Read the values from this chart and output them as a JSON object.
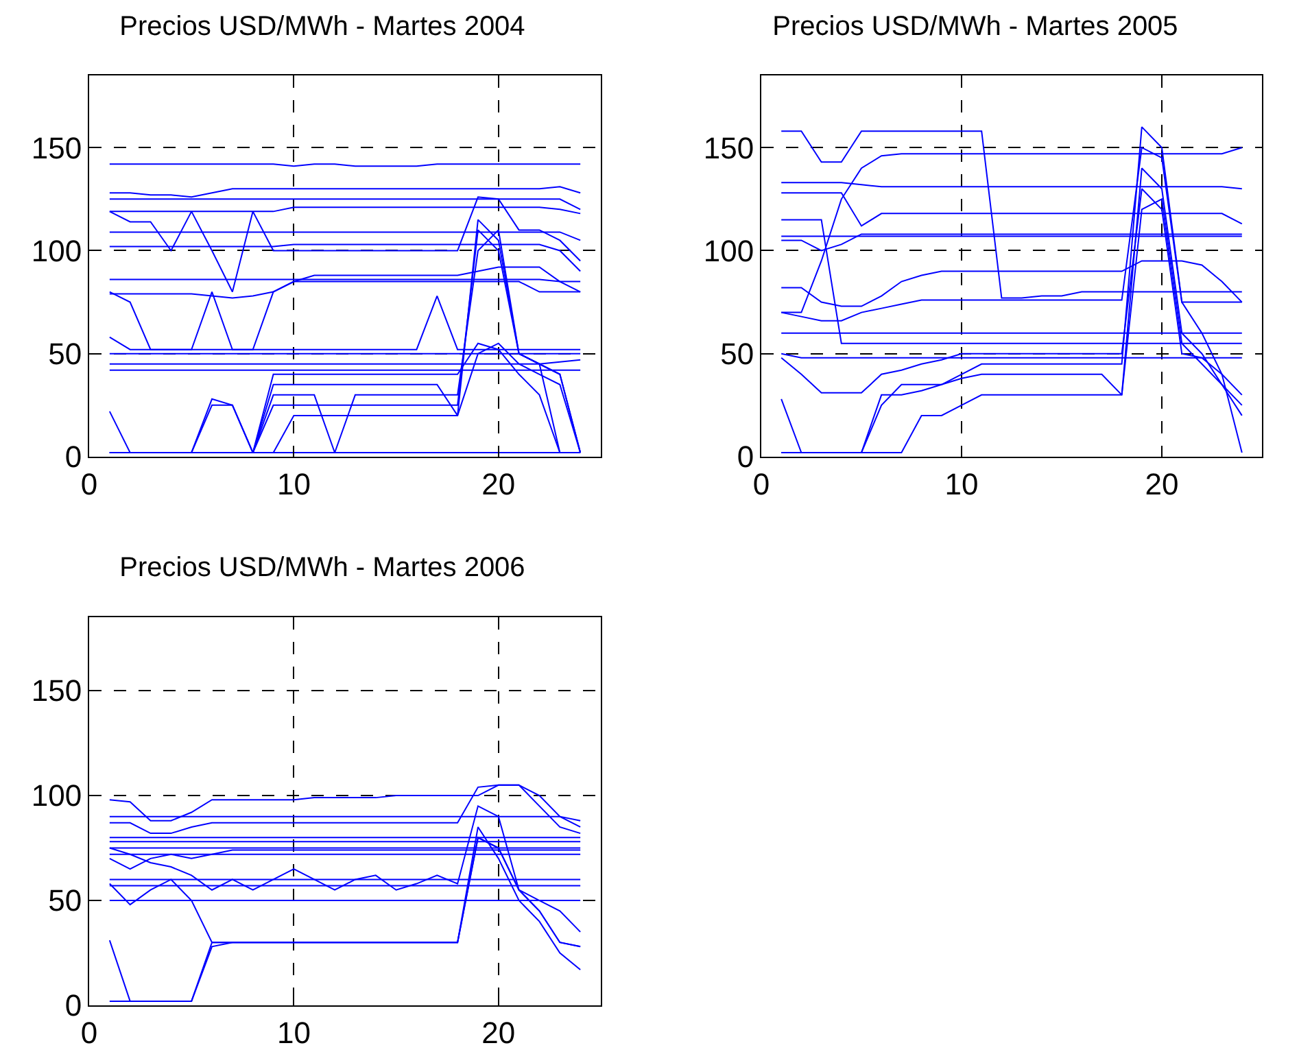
{
  "chart_data": [
    {
      "type": "line",
      "title": "Precios USD/MWh - Martes 2004",
      "x": [
        1,
        2,
        3,
        4,
        5,
        6,
        7,
        8,
        9,
        10,
        11,
        12,
        13,
        14,
        15,
        16,
        17,
        18,
        19,
        20,
        21,
        22,
        23,
        24
      ],
      "xlim": [
        0,
        25
      ],
      "ylim": [
        0,
        185
      ],
      "xticks": [
        0,
        10,
        20
      ],
      "yticks": [
        0,
        50,
        100,
        150
      ],
      "grid": true,
      "series": [
        {
          "color": "#0000ff",
          "values": [
            142,
            142,
            142,
            142,
            142,
            142,
            142,
            142,
            142,
            141,
            142,
            142,
            141,
            141,
            141,
            141,
            142,
            142,
            142,
            142,
            142,
            142,
            142,
            142
          ]
        },
        {
          "color": "#0000ff",
          "values": [
            128,
            128,
            127,
            127,
            126,
            128,
            130,
            130,
            130,
            130,
            130,
            130,
            130,
            130,
            130,
            130,
            130,
            130,
            130,
            130,
            130,
            130,
            131,
            128
          ]
        },
        {
          "color": "#0000ff",
          "values": [
            125,
            125,
            125,
            125,
            125,
            125,
            125,
            125,
            125,
            125,
            125,
            125,
            125,
            125,
            125,
            125,
            125,
            125,
            125,
            125,
            125,
            125,
            125,
            120
          ]
        },
        {
          "color": "#0000ff",
          "values": [
            119,
            119,
            119,
            119,
            119,
            119,
            119,
            119,
            119,
            121,
            121,
            121,
            121,
            121,
            121,
            121,
            121,
            121,
            121,
            121,
            121,
            121,
            120,
            118
          ]
        },
        {
          "color": "#0000ff",
          "values": [
            119,
            114,
            114,
            100,
            119,
            100,
            80,
            119,
            100,
            100,
            100,
            100,
            100,
            100,
            100,
            100,
            100,
            100,
            126,
            125,
            110,
            110,
            105,
            95
          ]
        },
        {
          "color": "#0000ff",
          "values": [
            109,
            109,
            109,
            109,
            109,
            109,
            109,
            109,
            109,
            109,
            109,
            109,
            109,
            109,
            109,
            109,
            109,
            109,
            109,
            109,
            109,
            109,
            109,
            105
          ]
        },
        {
          "color": "#0000ff",
          "values": [
            102,
            102,
            102,
            102,
            102,
            102,
            102,
            102,
            102,
            103,
            103,
            103,
            103,
            103,
            103,
            103,
            103,
            103,
            103,
            103,
            103,
            103,
            100,
            90
          ]
        },
        {
          "color": "#0000ff",
          "values": [
            86,
            86,
            86,
            86,
            86,
            86,
            86,
            86,
            86,
            86,
            86,
            86,
            86,
            86,
            86,
            86,
            86,
            86,
            86,
            86,
            86,
            86,
            85,
            85
          ]
        },
        {
          "color": "#0000ff",
          "values": [
            79,
            79,
            79,
            79,
            79,
            78,
            77,
            78,
            80,
            85,
            88,
            88,
            88,
            88,
            88,
            88,
            88,
            88,
            90,
            92,
            92,
            92,
            85,
            80
          ]
        },
        {
          "color": "#0000ff",
          "values": [
            80,
            75,
            52,
            52,
            52,
            80,
            52,
            52,
            80,
            85,
            85,
            85,
            85,
            85,
            85,
            85,
            85,
            85,
            85,
            85,
            85,
            80,
            80,
            80
          ]
        },
        {
          "color": "#0000ff",
          "values": [
            58,
            52,
            52,
            52,
            52,
            52,
            52,
            52,
            52,
            52,
            52,
            52,
            52,
            52,
            52,
            52,
            78,
            52,
            52,
            52,
            52,
            52,
            52,
            52
          ]
        },
        {
          "color": "#0000ff",
          "values": [
            50,
            50,
            50,
            50,
            50,
            50,
            50,
            50,
            50,
            50,
            50,
            50,
            50,
            50,
            50,
            50,
            50,
            50,
            50,
            50,
            50,
            50,
            50,
            50
          ]
        },
        {
          "color": "#0000ff",
          "values": [
            45,
            45,
            45,
            45,
            45,
            45,
            45,
            45,
            45,
            45,
            45,
            45,
            45,
            45,
            45,
            45,
            45,
            45,
            45,
            45,
            45,
            45,
            46,
            47
          ]
        },
        {
          "color": "#0000ff",
          "values": [
            42,
            42,
            42,
            42,
            42,
            42,
            42,
            42,
            42,
            42,
            42,
            42,
            42,
            42,
            42,
            42,
            42,
            42,
            42,
            42,
            42,
            42,
            42,
            42
          ]
        },
        {
          "color": "#0000ff",
          "values": [
            22,
            2,
            2,
            2,
            2,
            25,
            25,
            2,
            25,
            25,
            25,
            25,
            25,
            25,
            25,
            25,
            25,
            25,
            110,
            100,
            50,
            45,
            2,
            2
          ]
        },
        {
          "color": "#0000ff",
          "values": [
            2,
            2,
            2,
            2,
            2,
            2,
            2,
            2,
            40,
            40,
            40,
            40,
            40,
            40,
            40,
            40,
            40,
            40,
            55,
            52,
            40,
            30,
            2,
            2
          ]
        },
        {
          "color": "#0000ff",
          "values": [
            2,
            2,
            2,
            2,
            2,
            28,
            25,
            2,
            35,
            35,
            35,
            35,
            35,
            35,
            35,
            35,
            35,
            20,
            115,
            105,
            50,
            45,
            40,
            2
          ]
        },
        {
          "color": "#0000ff",
          "values": [
            2,
            2,
            2,
            2,
            2,
            2,
            2,
            2,
            30,
            30,
            30,
            2,
            30,
            30,
            30,
            30,
            30,
            30,
            100,
            110,
            50,
            45,
            40,
            2
          ]
        },
        {
          "color": "#0000ff",
          "values": [
            2,
            2,
            2,
            2,
            2,
            2,
            2,
            2,
            2,
            20,
            20,
            20,
            20,
            20,
            20,
            20,
            20,
            20,
            50,
            55,
            45,
            40,
            35,
            2
          ]
        },
        {
          "color": "#0000ff",
          "values": [
            2,
            2,
            2,
            2,
            2,
            2,
            2,
            2,
            2,
            2,
            2,
            2,
            2,
            2,
            2,
            2,
            2,
            2,
            2,
            2,
            2,
            2,
            2,
            2
          ]
        }
      ]
    },
    {
      "type": "line",
      "title": "Precios USD/MWh - Martes 2005",
      "x": [
        1,
        2,
        3,
        4,
        5,
        6,
        7,
        8,
        9,
        10,
        11,
        12,
        13,
        14,
        15,
        16,
        17,
        18,
        19,
        20,
        21,
        22,
        23,
        24
      ],
      "xlim": [
        0,
        25
      ],
      "ylim": [
        0,
        185
      ],
      "xticks": [
        0,
        10,
        20
      ],
      "yticks": [
        0,
        50,
        100,
        150
      ],
      "grid": true,
      "series": [
        {
          "color": "#0000ff",
          "values": [
            158,
            158,
            143,
            143,
            158,
            158,
            158,
            158,
            158,
            158,
            158,
            77,
            77,
            78,
            78,
            80,
            80,
            80,
            80,
            80,
            80,
            80,
            80,
            80
          ]
        },
        {
          "color": "#0000ff",
          "values": [
            133,
            133,
            133,
            133,
            132,
            131,
            131,
            131,
            131,
            131,
            131,
            131,
            131,
            131,
            131,
            131,
            131,
            131,
            131,
            131,
            131,
            131,
            131,
            130
          ]
        },
        {
          "color": "#0000ff",
          "values": [
            128,
            128,
            128,
            128,
            112,
            118,
            118,
            118,
            118,
            118,
            118,
            118,
            118,
            118,
            118,
            118,
            118,
            118,
            118,
            118,
            118,
            118,
            118,
            113
          ]
        },
        {
          "color": "#0000ff",
          "values": [
            115,
            115,
            115,
            55,
            55,
            55,
            55,
            55,
            55,
            55,
            55,
            55,
            55,
            55,
            55,
            55,
            55,
            55,
            55,
            55,
            55,
            55,
            55,
            55
          ]
        },
        {
          "color": "#0000ff",
          "values": [
            107,
            107,
            107,
            107,
            107,
            107,
            107,
            107,
            107,
            107,
            107,
            107,
            107,
            107,
            107,
            107,
            107,
            107,
            107,
            107,
            107,
            107,
            107,
            107
          ]
        },
        {
          "color": "#0000ff",
          "values": [
            105,
            105,
            100,
            103,
            108,
            108,
            108,
            108,
            108,
            108,
            108,
            108,
            108,
            108,
            108,
            108,
            108,
            108,
            108,
            108,
            108,
            108,
            108,
            108
          ]
        },
        {
          "color": "#0000ff",
          "values": [
            70,
            70,
            95,
            125,
            140,
            146,
            147,
            147,
            147,
            147,
            147,
            147,
            147,
            147,
            147,
            147,
            147,
            147,
            147,
            147,
            147,
            147,
            147,
            150
          ]
        },
        {
          "color": "#0000ff",
          "values": [
            82,
            82,
            75,
            73,
            73,
            78,
            85,
            88,
            90,
            90,
            90,
            90,
            90,
            90,
            90,
            90,
            90,
            90,
            95,
            95,
            95,
            93,
            85,
            75
          ]
        },
        {
          "color": "#0000ff",
          "values": [
            70,
            68,
            66,
            66,
            70,
            72,
            74,
            76,
            76,
            76,
            76,
            76,
            76,
            76,
            76,
            76,
            76,
            76,
            150,
            145,
            75,
            75,
            75,
            75
          ]
        },
        {
          "color": "#0000ff",
          "values": [
            60,
            60,
            60,
            60,
            60,
            60,
            60,
            60,
            60,
            60,
            60,
            60,
            60,
            60,
            60,
            60,
            60,
            60,
            60,
            60,
            60,
            60,
            60,
            60
          ]
        },
        {
          "color": "#0000ff",
          "values": [
            50,
            48,
            48,
            48,
            48,
            48,
            48,
            48,
            48,
            48,
            48,
            48,
            48,
            48,
            48,
            48,
            48,
            48,
            48,
            48,
            48,
            48,
            48,
            48
          ]
        },
        {
          "color": "#0000ff",
          "values": [
            48,
            40,
            31,
            31,
            31,
            40,
            42,
            45,
            47,
            50,
            50,
            50,
            50,
            50,
            50,
            50,
            50,
            50,
            130,
            120,
            50,
            48,
            40,
            30
          ]
        },
        {
          "color": "#0000ff",
          "values": [
            28,
            2,
            2,
            2,
            2,
            30,
            30,
            32,
            35,
            40,
            45,
            45,
            45,
            45,
            45,
            45,
            45,
            45,
            160,
            150,
            75,
            60,
            40,
            2
          ]
        },
        {
          "color": "#0000ff",
          "values": [
            2,
            2,
            2,
            2,
            2,
            25,
            35,
            35,
            35,
            38,
            40,
            40,
            40,
            40,
            40,
            40,
            40,
            30,
            140,
            130,
            60,
            50,
            35,
            20
          ]
        },
        {
          "color": "#0000ff",
          "values": [
            2,
            2,
            2,
            2,
            2,
            2,
            2,
            20,
            20,
            25,
            30,
            30,
            30,
            30,
            30,
            30,
            30,
            30,
            120,
            125,
            55,
            45,
            35,
            25
          ]
        }
      ]
    },
    {
      "type": "line",
      "title": "Precios USD/MWh - Martes 2006",
      "x": [
        1,
        2,
        3,
        4,
        5,
        6,
        7,
        8,
        9,
        10,
        11,
        12,
        13,
        14,
        15,
        16,
        17,
        18,
        19,
        20,
        21,
        22,
        23,
        24
      ],
      "xlim": [
        0,
        25
      ],
      "ylim": [
        0,
        185
      ],
      "xticks": [
        0,
        10,
        20
      ],
      "yticks": [
        0,
        50,
        100,
        150
      ],
      "grid": true,
      "series": [
        {
          "color": "#0000ff",
          "values": [
            98,
            97,
            88,
            88,
            92,
            98,
            98,
            98,
            98,
            98,
            99,
            99,
            99,
            99,
            100,
            100,
            100,
            100,
            100,
            105,
            105,
            100,
            90,
            85
          ]
        },
        {
          "color": "#0000ff",
          "values": [
            90,
            90,
            90,
            90,
            90,
            90,
            90,
            90,
            90,
            90,
            90,
            90,
            90,
            90,
            90,
            90,
            90,
            90,
            90,
            90,
            90,
            90,
            90,
            88
          ]
        },
        {
          "color": "#0000ff",
          "values": [
            87,
            87,
            82,
            82,
            85,
            87,
            87,
            87,
            87,
            87,
            87,
            87,
            87,
            87,
            87,
            87,
            87,
            87,
            104,
            105,
            105,
            95,
            85,
            82
          ]
        },
        {
          "color": "#0000ff",
          "values": [
            80,
            80,
            80,
            80,
            80,
            80,
            80,
            80,
            80,
            80,
            80,
            80,
            80,
            80,
            80,
            80,
            80,
            80,
            80,
            80,
            80,
            80,
            80,
            80
          ]
        },
        {
          "color": "#0000ff",
          "values": [
            78,
            78,
            78,
            78,
            78,
            78,
            78,
            78,
            78,
            78,
            78,
            78,
            78,
            78,
            78,
            78,
            78,
            78,
            78,
            78,
            78,
            78,
            78,
            78
          ]
        },
        {
          "color": "#0000ff",
          "values": [
            75,
            75,
            75,
            75,
            75,
            75,
            75,
            75,
            75,
            75,
            75,
            75,
            75,
            75,
            75,
            75,
            75,
            75,
            75,
            75,
            75,
            75,
            75,
            75
          ]
        },
        {
          "color": "#0000ff",
          "values": [
            72,
            72,
            72,
            72,
            72,
            72,
            72,
            72,
            72,
            72,
            72,
            72,
            72,
            72,
            72,
            72,
            72,
            72,
            72,
            72,
            72,
            72,
            72,
            72
          ]
        },
        {
          "color": "#0000ff",
          "values": [
            70,
            65,
            70,
            72,
            70,
            72,
            74,
            74,
            74,
            74,
            74,
            74,
            74,
            74,
            74,
            74,
            74,
            74,
            74,
            74,
            74,
            74,
            74,
            74
          ]
        },
        {
          "color": "#0000ff",
          "values": [
            60,
            60,
            60,
            60,
            60,
            60,
            60,
            60,
            60,
            60,
            60,
            60,
            60,
            60,
            60,
            60,
            60,
            60,
            60,
            60,
            60,
            60,
            60,
            60
          ]
        },
        {
          "color": "#0000ff",
          "values": [
            57,
            57,
            57,
            57,
            57,
            57,
            57,
            57,
            57,
            57,
            57,
            57,
            57,
            57,
            57,
            57,
            57,
            57,
            57,
            57,
            57,
            57,
            57,
            57
          ]
        },
        {
          "color": "#0000ff",
          "values": [
            50,
            50,
            50,
            50,
            50,
            50,
            50,
            50,
            50,
            50,
            50,
            50,
            50,
            50,
            50,
            50,
            50,
            50,
            50,
            50,
            50,
            50,
            50,
            50
          ]
        },
        {
          "color": "#0000ff",
          "values": [
            58,
            48,
            55,
            60,
            50,
            30,
            30,
            30,
            30,
            30,
            30,
            30,
            30,
            30,
            30,
            30,
            30,
            30,
            80,
            75,
            55,
            45,
            30,
            28
          ]
        },
        {
          "color": "#0000ff",
          "values": [
            31,
            2,
            2,
            2,
            2,
            30,
            30,
            30,
            30,
            30,
            30,
            30,
            30,
            30,
            30,
            30,
            30,
            30,
            80,
            75,
            55,
            45,
            30,
            28
          ]
        },
        {
          "color": "#0000ff",
          "values": [
            2,
            2,
            2,
            2,
            2,
            28,
            30,
            30,
            30,
            30,
            30,
            30,
            30,
            30,
            30,
            30,
            30,
            30,
            85,
            70,
            50,
            40,
            25,
            17
          ]
        },
        {
          "color": "#0000ff",
          "values": [
            75,
            72,
            68,
            66,
            62,
            55,
            60,
            55,
            60,
            65,
            60,
            55,
            60,
            62,
            55,
            58,
            62,
            58,
            95,
            90,
            55,
            50,
            45,
            35
          ]
        }
      ]
    }
  ]
}
